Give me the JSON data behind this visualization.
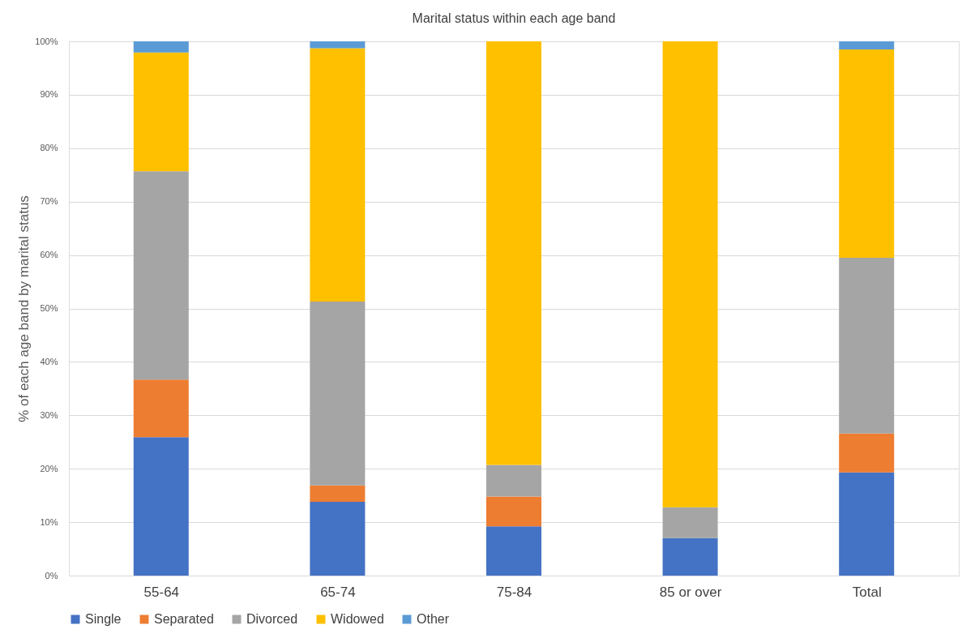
{
  "chart_data": {
    "type": "bar",
    "stacked": true,
    "title": "Marital status within each age band",
    "ylabel": "% of each age band by marital status",
    "categories": [
      "55-64",
      "65-74",
      "75-84",
      "85 or over",
      "Total"
    ],
    "series": [
      {
        "name": "Single",
        "color": "#4472c4",
        "values": [
          25.9,
          13.8,
          9.2,
          7.0,
          19.3
        ]
      },
      {
        "name": "Separated",
        "color": "#ed7d31",
        "values": [
          10.8,
          3.1,
          5.6,
          0,
          7.3
        ]
      },
      {
        "name": "Divorced",
        "color": "#a5a5a5",
        "values": [
          39.0,
          34.4,
          5.9,
          5.8,
          32.9
        ]
      },
      {
        "name": "Widowed",
        "color": "#ffc000",
        "values": [
          22.2,
          47.4,
          79.3,
          87.2,
          39.0
        ]
      },
      {
        "name": "Other",
        "color": "#5b9bd5",
        "values": [
          2.1,
          1.3,
          0,
          0,
          1.5
        ]
      }
    ],
    "ylim": [
      0,
      100
    ],
    "yticks": [
      {
        "value": 0,
        "label": "0%"
      },
      {
        "value": 10,
        "label": "10%"
      },
      {
        "value": 20,
        "label": "20%"
      },
      {
        "value": 30,
        "label": "30%"
      },
      {
        "value": 40,
        "label": "40%"
      },
      {
        "value": 50,
        "label": "50%"
      },
      {
        "value": 60,
        "label": "60%"
      },
      {
        "value": 70,
        "label": "70%"
      },
      {
        "value": 80,
        "label": "80%"
      },
      {
        "value": 90,
        "label": "90%"
      },
      {
        "value": 100,
        "label": "100%"
      }
    ],
    "grid": "y",
    "legend": "bottom"
  }
}
